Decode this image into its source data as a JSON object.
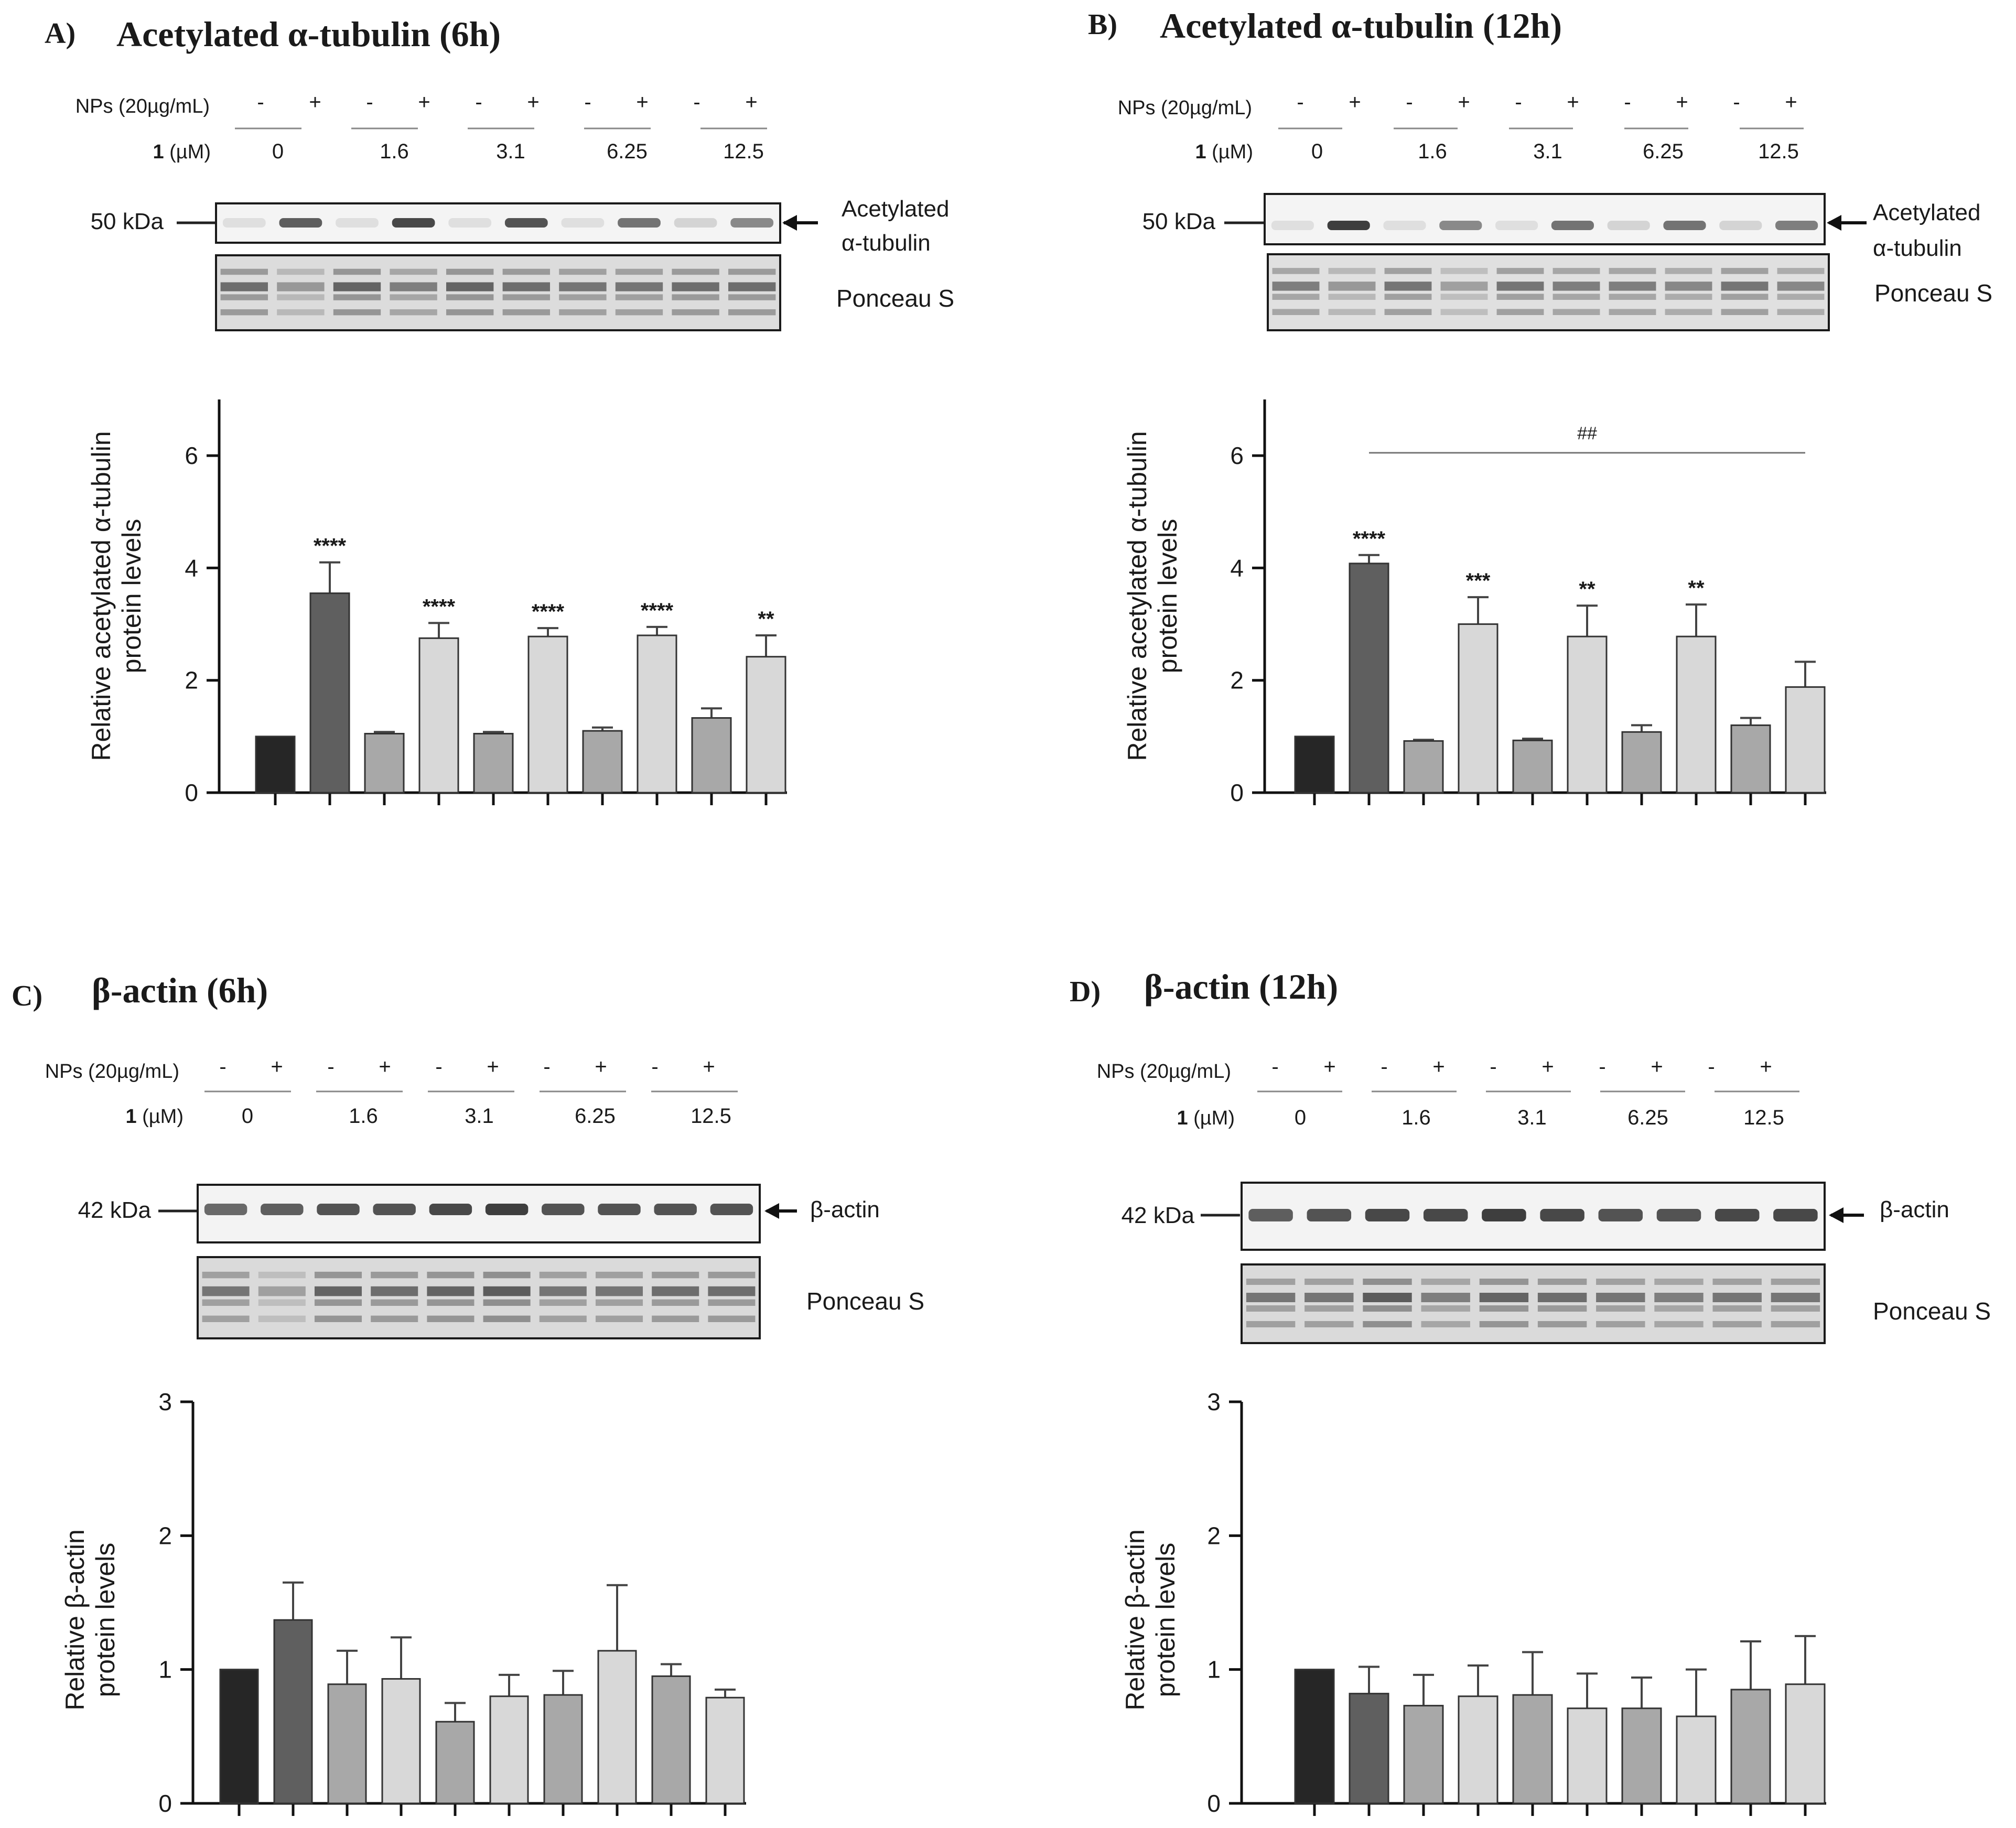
{
  "panels": [
    {
      "letter": "A)",
      "title": "Acetylated α-tubulin (6h)",
      "header": {
        "nps_label": "NPs (20µg/mL)",
        "conc_label_bold": "1",
        "conc_label_unit": " (µM)",
        "signs": [
          "-",
          "+",
          "-",
          "+",
          "-",
          "+",
          "-",
          "+",
          "-",
          "+"
        ],
        "concentrations": [
          "0",
          "1.6",
          "3.1",
          "6.25",
          "12.5"
        ]
      },
      "blot": {
        "kda": "50 kDa",
        "protein_line1": "Acetylated",
        "protein_line2": "α-tubulin",
        "loading": "Ponceau S",
        "band_intensity": [
          0.15,
          0.75,
          0.15,
          0.85,
          0.15,
          0.8,
          0.15,
          0.65,
          0.2,
          0.55
        ],
        "ponceau_lane_intensity": [
          0.85,
          0.6,
          0.9,
          0.75,
          0.9,
          0.85,
          0.8,
          0.8,
          0.85,
          0.85
        ]
      }
    },
    {
      "letter": "B)",
      "title": "Acetylated α-tubulin (12h)",
      "header": {
        "nps_label": "NPs (20µg/mL)",
        "conc_label_bold": "1",
        "conc_label_unit": " (µM)",
        "signs": [
          "-",
          "+",
          "-",
          "+",
          "-",
          "+",
          "-",
          "+",
          "-",
          "+"
        ],
        "concentrations": [
          "0",
          "1.6",
          "3.1",
          "6.25",
          "12.5"
        ]
      },
      "blot": {
        "kda": "50 kDa",
        "protein_line1": "Acetylated",
        "protein_line2": "α-tubulin",
        "loading": "Ponceau S",
        "band_intensity": [
          0.15,
          0.9,
          0.15,
          0.55,
          0.15,
          0.65,
          0.2,
          0.65,
          0.2,
          0.6
        ],
        "ponceau_lane_intensity": [
          0.75,
          0.6,
          0.8,
          0.55,
          0.8,
          0.75,
          0.75,
          0.7,
          0.8,
          0.7
        ]
      }
    },
    {
      "letter": "C)",
      "title": "β-actin (6h)",
      "header": {
        "nps_label": "NPs (20µg/mL)",
        "conc_label_bold": "1",
        "conc_label_unit": " (µM)",
        "signs": [
          "-",
          "+",
          "-",
          "+",
          "-",
          "+",
          "-",
          "+",
          "-",
          "+"
        ],
        "concentrations": [
          "0",
          "1.6",
          "3.1",
          "6.25",
          "12.5"
        ]
      },
      "blot": {
        "kda": "42 kDa",
        "protein_line1": "β-actin",
        "protein_line2": "",
        "loading": "Ponceau S",
        "band_intensity": [
          0.7,
          0.75,
          0.8,
          0.8,
          0.85,
          0.9,
          0.8,
          0.8,
          0.8,
          0.8
        ],
        "ponceau_lane_intensity": [
          0.8,
          0.55,
          0.9,
          0.85,
          0.9,
          0.95,
          0.8,
          0.8,
          0.85,
          0.85
        ]
      }
    },
    {
      "letter": "D)",
      "title": "β-actin (12h)",
      "header": {
        "nps_label": "NPs (20µg/mL)",
        "conc_label_bold": "1",
        "conc_label_unit": " (µM)",
        "signs": [
          "-",
          "+",
          "-",
          "+",
          "-",
          "+",
          "-",
          "+",
          "-",
          "+"
        ],
        "concentrations": [
          "0",
          "1.6",
          "3.1",
          "6.25",
          "12.5"
        ]
      },
      "blot": {
        "kda": "42 kDa",
        "protein_line1": "β-actin",
        "protein_line2": "",
        "loading": "Ponceau S",
        "band_intensity": [
          0.75,
          0.8,
          0.85,
          0.85,
          0.9,
          0.85,
          0.8,
          0.8,
          0.85,
          0.85
        ],
        "ponceau_lane_intensity": [
          0.8,
          0.8,
          0.95,
          0.75,
          0.9,
          0.85,
          0.8,
          0.75,
          0.8,
          0.8
        ]
      }
    }
  ],
  "colors": {
    "control_bar": "#262626",
    "nps_bar": "#5f5f5f",
    "compound_bar": "#a8a8a8",
    "combo_bar": "#d8d8d8"
  },
  "chart_data": [
    {
      "type": "bar",
      "panel": "A",
      "ylabel_line1": "Relative acetylated α-tubulin",
      "ylabel_line2": "protein levels",
      "ylim": [
        0,
        7
      ],
      "yticks": [
        0,
        2,
        4,
        6
      ],
      "values": [
        1.0,
        3.55,
        1.05,
        2.75,
        1.05,
        2.78,
        1.1,
        2.8,
        1.33,
        2.42
      ],
      "errors": [
        0,
        0.55,
        0.03,
        0.27,
        0.03,
        0.15,
        0.06,
        0.15,
        0.17,
        0.38
      ],
      "groups": [
        "control",
        "nps",
        "compound",
        "combo",
        "compound",
        "combo",
        "compound",
        "combo",
        "compound",
        "combo"
      ],
      "annotations": [
        "",
        "****",
        "",
        "****",
        "",
        "****",
        "",
        "****",
        "",
        "**"
      ],
      "bracket": null
    },
    {
      "type": "bar",
      "panel": "B",
      "ylabel_line1": "Relative acetylated α-tubulin",
      "ylabel_line2": "protein levels",
      "ylim": [
        0,
        7
      ],
      "yticks": [
        0,
        2,
        4,
        6
      ],
      "values": [
        1.0,
        4.08,
        0.92,
        3.0,
        0.93,
        2.78,
        1.08,
        2.78,
        1.2,
        1.88
      ],
      "errors": [
        0,
        0.15,
        0.02,
        0.48,
        0.03,
        0.55,
        0.12,
        0.57,
        0.13,
        0.45
      ],
      "groups": [
        "control",
        "nps",
        "compound",
        "combo",
        "compound",
        "combo",
        "compound",
        "combo",
        "compound",
        "combo"
      ],
      "annotations": [
        "",
        "****",
        "",
        "***",
        "",
        "**",
        "",
        "**",
        "",
        ""
      ],
      "bracket": {
        "from": 1,
        "to": 9,
        "y": 6.05,
        "label": "##"
      }
    },
    {
      "type": "bar",
      "panel": "C",
      "ylabel_line1": "Relative β-actin",
      "ylabel_line2": "protein levels",
      "ylim": [
        0,
        3
      ],
      "yticks": [
        0,
        1,
        2,
        3
      ],
      "values": [
        1.0,
        1.37,
        0.89,
        0.93,
        0.61,
        0.8,
        0.81,
        1.14,
        0.95,
        0.79
      ],
      "errors": [
        0,
        0.28,
        0.25,
        0.31,
        0.14,
        0.16,
        0.18,
        0.49,
        0.09,
        0.06
      ],
      "groups": [
        "control",
        "nps",
        "compound",
        "combo",
        "compound",
        "combo",
        "compound",
        "combo",
        "compound",
        "combo"
      ],
      "annotations": [
        "",
        "",
        "",
        "",
        "",
        "",
        "",
        "",
        "",
        ""
      ],
      "bracket": null
    },
    {
      "type": "bar",
      "panel": "D",
      "ylabel_line1": "Relative β-actin",
      "ylabel_line2": "protein levels",
      "ylim": [
        0,
        3
      ],
      "yticks": [
        0,
        1,
        2,
        3
      ],
      "values": [
        1.0,
        0.82,
        0.73,
        0.8,
        0.81,
        0.71,
        0.71,
        0.65,
        0.85,
        0.89
      ],
      "errors": [
        0,
        0.2,
        0.23,
        0.23,
        0.32,
        0.26,
        0.23,
        0.35,
        0.36,
        0.36
      ],
      "groups": [
        "control",
        "nps",
        "compound",
        "combo",
        "compound",
        "combo",
        "compound",
        "combo",
        "compound",
        "combo"
      ],
      "annotations": [
        "",
        "",
        "",
        "",
        "",
        "",
        "",
        "",
        "",
        ""
      ],
      "bracket": null
    }
  ]
}
